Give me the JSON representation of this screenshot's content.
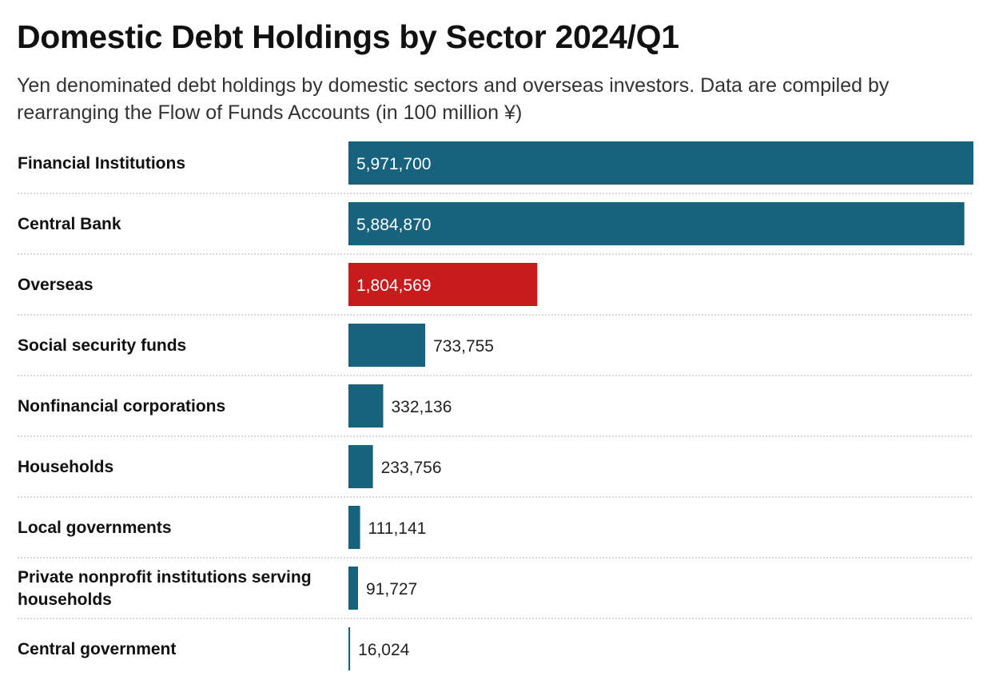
{
  "header": {
    "title": "Domestic Debt Holdings by Sector 2024/Q1",
    "subtitle": "Yen denominated debt holdings by domestic sectors and overseas investors. Data are compiled by rearranging the Flow of Funds Accounts (in 100 million ¥)"
  },
  "colors": {
    "default_bar": "#17627d",
    "highlight_bar": "#c81c1c"
  },
  "chart_data": {
    "type": "bar",
    "orientation": "horizontal",
    "title": "Domestic Debt Holdings by Sector 2024/Q1",
    "subtitle": "Yen denominated debt holdings by domestic sectors and overseas investors. Data are compiled by rearranging the Flow of Funds Accounts (in 100 million ¥)",
    "xlabel": "",
    "ylabel": "",
    "xlim": [
      0,
      5971700
    ],
    "grid": false,
    "legend": "none",
    "highlight": "Overseas",
    "categories": [
      "Financial Institutions",
      "Central Bank",
      "Overseas",
      "Social security funds",
      "Nonfinancial corporations",
      "Households",
      "Local governments",
      "Private nonprofit institutions serving households",
      "Central government"
    ],
    "values": [
      5971700,
      5884870,
      1804569,
      733755,
      332136,
      233756,
      111141,
      91727,
      16024
    ],
    "labels": [
      "5,971,700",
      "5,884,870",
      "1,804,569",
      "733,755",
      "332,136",
      "233,756",
      "111,141",
      "91,727",
      "16,024"
    ]
  }
}
